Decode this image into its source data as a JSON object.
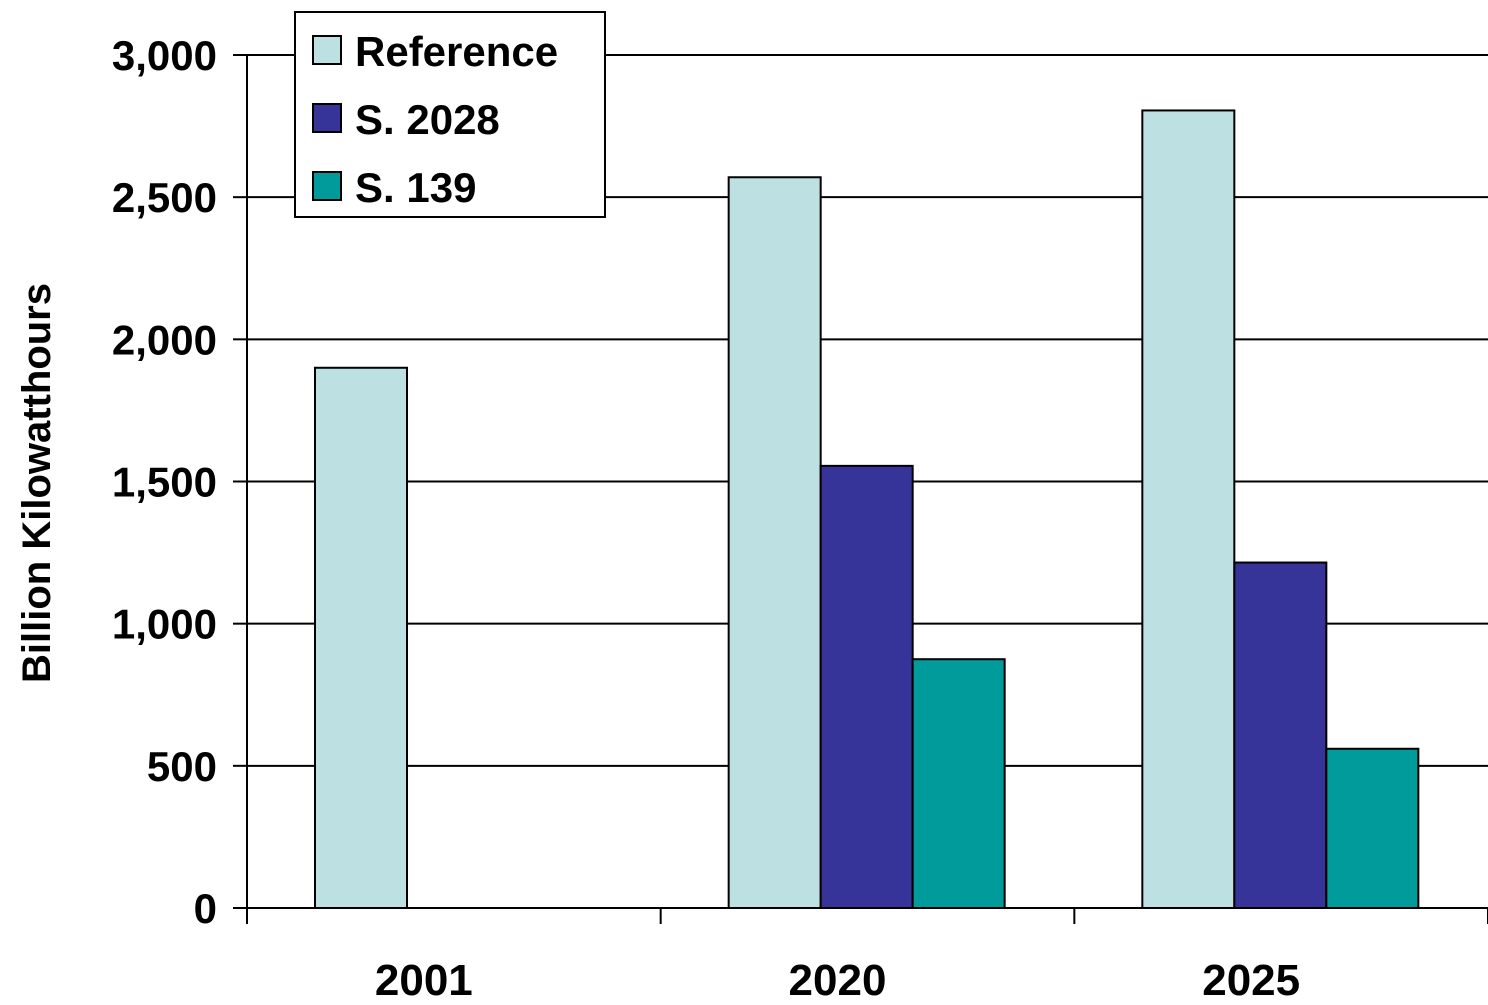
{
  "chart_data": {
    "type": "bar",
    "title": "",
    "xlabel": "",
    "ylabel": "Billion Kilowatthours",
    "categories": [
      "2001",
      "2020",
      "2025"
    ],
    "series": [
      {
        "name": "Reference",
        "color": "#bde1e3",
        "values": [
          1900,
          2570,
          2805
        ]
      },
      {
        "name": "S. 2028",
        "color": "#363399",
        "values": [
          null,
          1555,
          1215
        ]
      },
      {
        "name": "S. 139",
        "color": "#009b9a",
        "values": [
          null,
          875,
          560
        ]
      }
    ],
    "ylim": [
      0,
      3000
    ],
    "yticks": [
      0,
      500,
      1000,
      1500,
      2000,
      2500,
      3000
    ],
    "ytick_labels": [
      "0",
      "500",
      "1,000",
      "1,500",
      "2,000",
      "2,500",
      "3,000"
    ],
    "grid": true,
    "legend_position": "top-left"
  }
}
